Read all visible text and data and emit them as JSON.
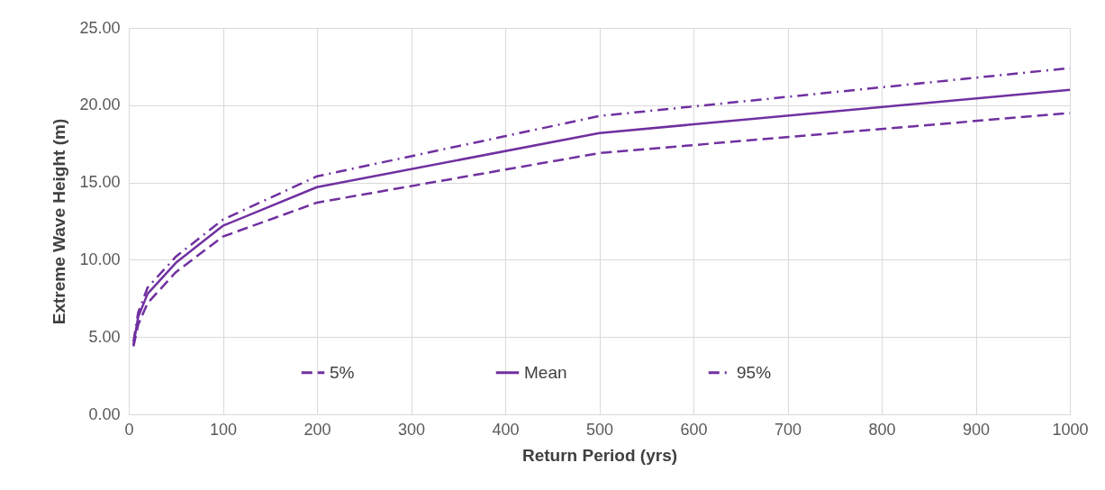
{
  "chart_data": {
    "type": "line",
    "xlabel": "Return Period (yrs)",
    "ylabel": "Extreme Wave Height (m)",
    "x": [
      5,
      10,
      20,
      50,
      100,
      200,
      500,
      1000
    ],
    "series": [
      {
        "name": "5%",
        "color": "#7030a0",
        "line_style": "dashed",
        "values": [
          4.4,
          5.8,
          7.2,
          9.2,
          11.5,
          13.7,
          16.9,
          19.5
        ]
      },
      {
        "name": "Mean",
        "color": "#7030a0",
        "line_style": "solid",
        "values": [
          4.5,
          6.3,
          7.8,
          9.8,
          12.2,
          14.7,
          18.2,
          21.0
        ]
      },
      {
        "name": "95%",
        "color": "#7030a0",
        "line_style": "dashdot",
        "values": [
          4.7,
          6.6,
          8.2,
          10.2,
          12.6,
          15.4,
          19.3,
          22.4
        ]
      }
    ],
    "xlim": [
      0,
      1000
    ],
    "xticks": [
      0,
      100,
      200,
      300,
      400,
      500,
      600,
      700,
      800,
      900,
      1000
    ],
    "ylim": [
      0,
      25
    ],
    "yticks": [
      {
        "value": 0,
        "label": "0.00"
      },
      {
        "value": 5,
        "label": "5.00"
      },
      {
        "value": 10,
        "label": "10.00"
      },
      {
        "value": 15,
        "label": "15.00"
      },
      {
        "value": 20,
        "label": "20.00"
      },
      {
        "value": 25,
        "label": "25.00"
      }
    ],
    "grid": true,
    "legend": "bottom",
    "marker": "none"
  }
}
